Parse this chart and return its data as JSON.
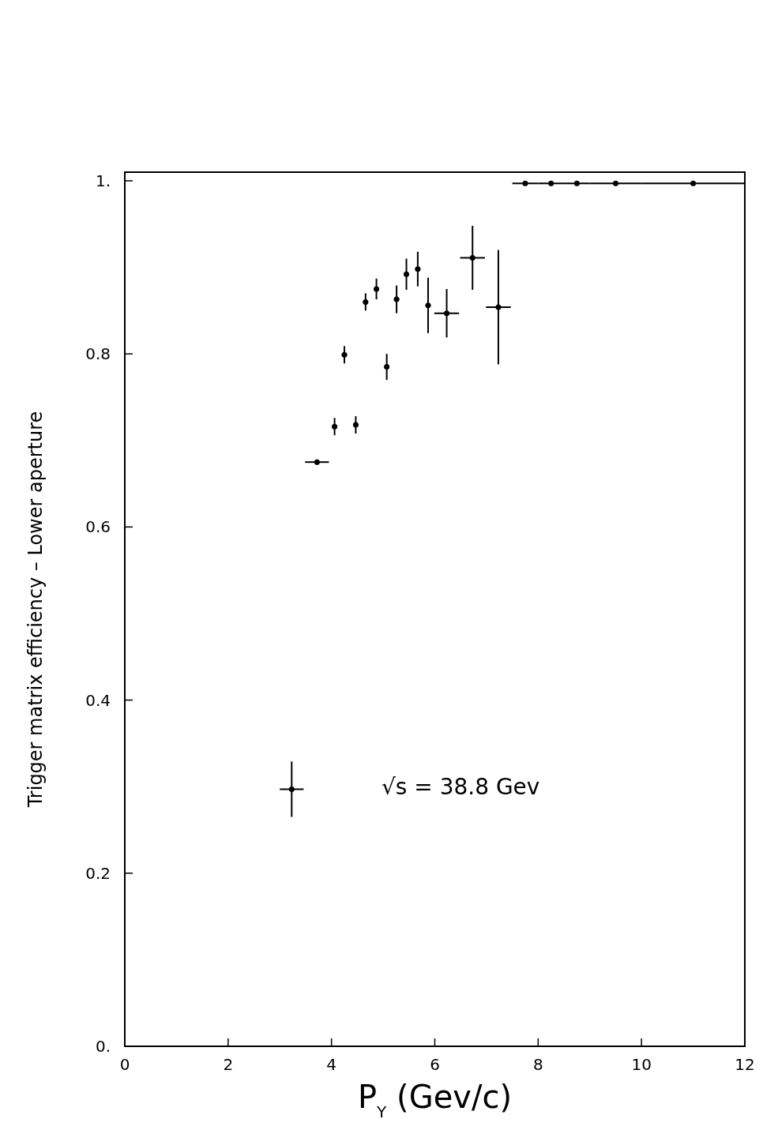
{
  "chart_data": {
    "type": "scatter",
    "xlabel": "P$_{Y}$ (Gev/c)",
    "ylabel": "Trigger matrix efficiency  –  Lower aperture",
    "annotations": [
      "√s = 38.8 Gev"
    ],
    "xlim": [
      0,
      12
    ],
    "ylim": [
      0,
      1.01
    ],
    "xticks": [
      0,
      2,
      4,
      6,
      8,
      10,
      12
    ],
    "yticks": [
      {
        "value": 0,
        "label": "0."
      },
      0.2,
      0.4,
      0.6,
      0.8,
      {
        "value": 1,
        "label": "1."
      }
    ],
    "grid": false,
    "marker": "circle",
    "series": [
      {
        "color": "#000000",
        "x": [
          3.23,
          3.72,
          4.06,
          4.25,
          4.47,
          4.66,
          4.87,
          5.07,
          5.26,
          5.45,
          5.67,
          5.87,
          6.23,
          6.73,
          7.23,
          7.75,
          8.25,
          8.75,
          9.5,
          11.0
        ],
        "values": [
          0.297,
          0.675,
          0.716,
          0.799,
          0.718,
          0.86,
          0.875,
          0.785,
          0.863,
          0.892,
          0.898,
          0.856,
          0.847,
          0.911,
          0.854,
          0.997,
          0.997,
          0.997,
          0.997,
          0.997
        ],
        "errors": [
          0.032,
          0.003,
          0.01,
          0.01,
          0.01,
          0.01,
          0.012,
          0.015,
          0.016,
          0.018,
          0.02,
          0.032,
          0.028,
          0.037,
          0.066,
          0.002,
          0.002,
          0.002,
          0.002,
          0.002
        ],
        "xerrors": [
          0.23,
          0.23,
          0.05,
          0.05,
          0.05,
          0.05,
          0.05,
          0.05,
          0.05,
          0.05,
          0.05,
          0.05,
          0.24,
          0.24,
          0.24,
          0.25,
          0.25,
          0.25,
          0.5,
          1.0
        ]
      }
    ]
  }
}
